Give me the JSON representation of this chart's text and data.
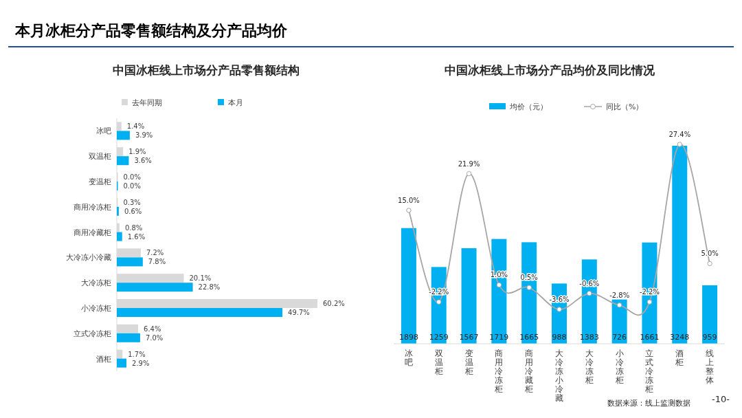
{
  "chart_data": [
    {
      "type": "bar",
      "orientation": "horizontal",
      "title": "中国冰柜线上市场分产品零售额结构",
      "legend": "top",
      "annotations": [
        "本月冰柜分产品零售额结构及分产品均价"
      ],
      "categories": [
        "冰吧",
        "双温柜",
        "变温柜",
        "商用冷冻柜",
        "商用冷藏柜",
        "大冷冻小冷藏",
        "大冷冻柜",
        "小冷冻柜",
        "立式冷冻柜",
        "酒柜"
      ],
      "series": [
        {
          "name": "去年同期",
          "color": "#d9d9d9",
          "values": [
            1.4,
            1.9,
            0.0,
            0.3,
            0.8,
            7.2,
            20.1,
            60.2,
            6.4,
            1.7
          ],
          "value_labels": [
            "1.4%",
            "1.9%",
            "0.0%",
            "0.3%",
            "0.8%",
            "7.2%",
            "20.1%",
            "60.2%",
            "6.4%",
            "1.7%"
          ]
        },
        {
          "name": "本月",
          "color": "#00b0f0",
          "values": [
            3.9,
            3.6,
            0.0,
            0.6,
            1.6,
            7.8,
            22.8,
            49.7,
            7.0,
            2.9
          ],
          "value_labels": [
            "3.9%",
            "3.6%",
            "0.0%",
            "0.6%",
            "1.6%",
            "7.8%",
            "22.8%",
            "49.7%",
            "7.0%",
            "2.9%"
          ]
        }
      ]
    },
    {
      "type": "bar",
      "title": "中国冰柜线上市场分产品均价及同比情况",
      "legend": "top",
      "annotations": [
        "数据来源：线上监测数据",
        "-10-"
      ],
      "categories": [
        "冰吧",
        "双温柜",
        "变温柜",
        "商用冷冻柜",
        "商用冷藏柜",
        "大冷冻小冷藏",
        "大冷冻柜",
        "小冷冻柜",
        "立式冷冻柜",
        "酒柜",
        "线上整体"
      ],
      "series": [
        {
          "name": "均价（元）",
          "color": "#00b0f0",
          "values": [
            1898,
            1259,
            1567,
            1719,
            1665,
            988,
            1383,
            726,
            1661,
            3248,
            959
          ],
          "value_labels": [
            "1898",
            "1259",
            "1567",
            "1719",
            "1665",
            "988",
            "1383",
            "726",
            "1661",
            "3248",
            "959"
          ]
        },
        {
          "name": "同比（%）",
          "type": "line",
          "axis": "y2",
          "marker": "circle",
          "color": "#a6a6a6",
          "values": [
            15.0,
            -2.2,
            21.9,
            1.0,
            0.5,
            -3.6,
            -0.6,
            -2.8,
            -2.2,
            27.4,
            5.0
          ],
          "value_labels": [
            "15.0%",
            "-2.2%",
            "21.9%",
            "1.0%",
            "0.5%",
            "-3.6%",
            "-0.6%",
            "-2.8%",
            "-2.2%",
            "27.4%",
            "5.0%"
          ]
        }
      ]
    }
  ]
}
